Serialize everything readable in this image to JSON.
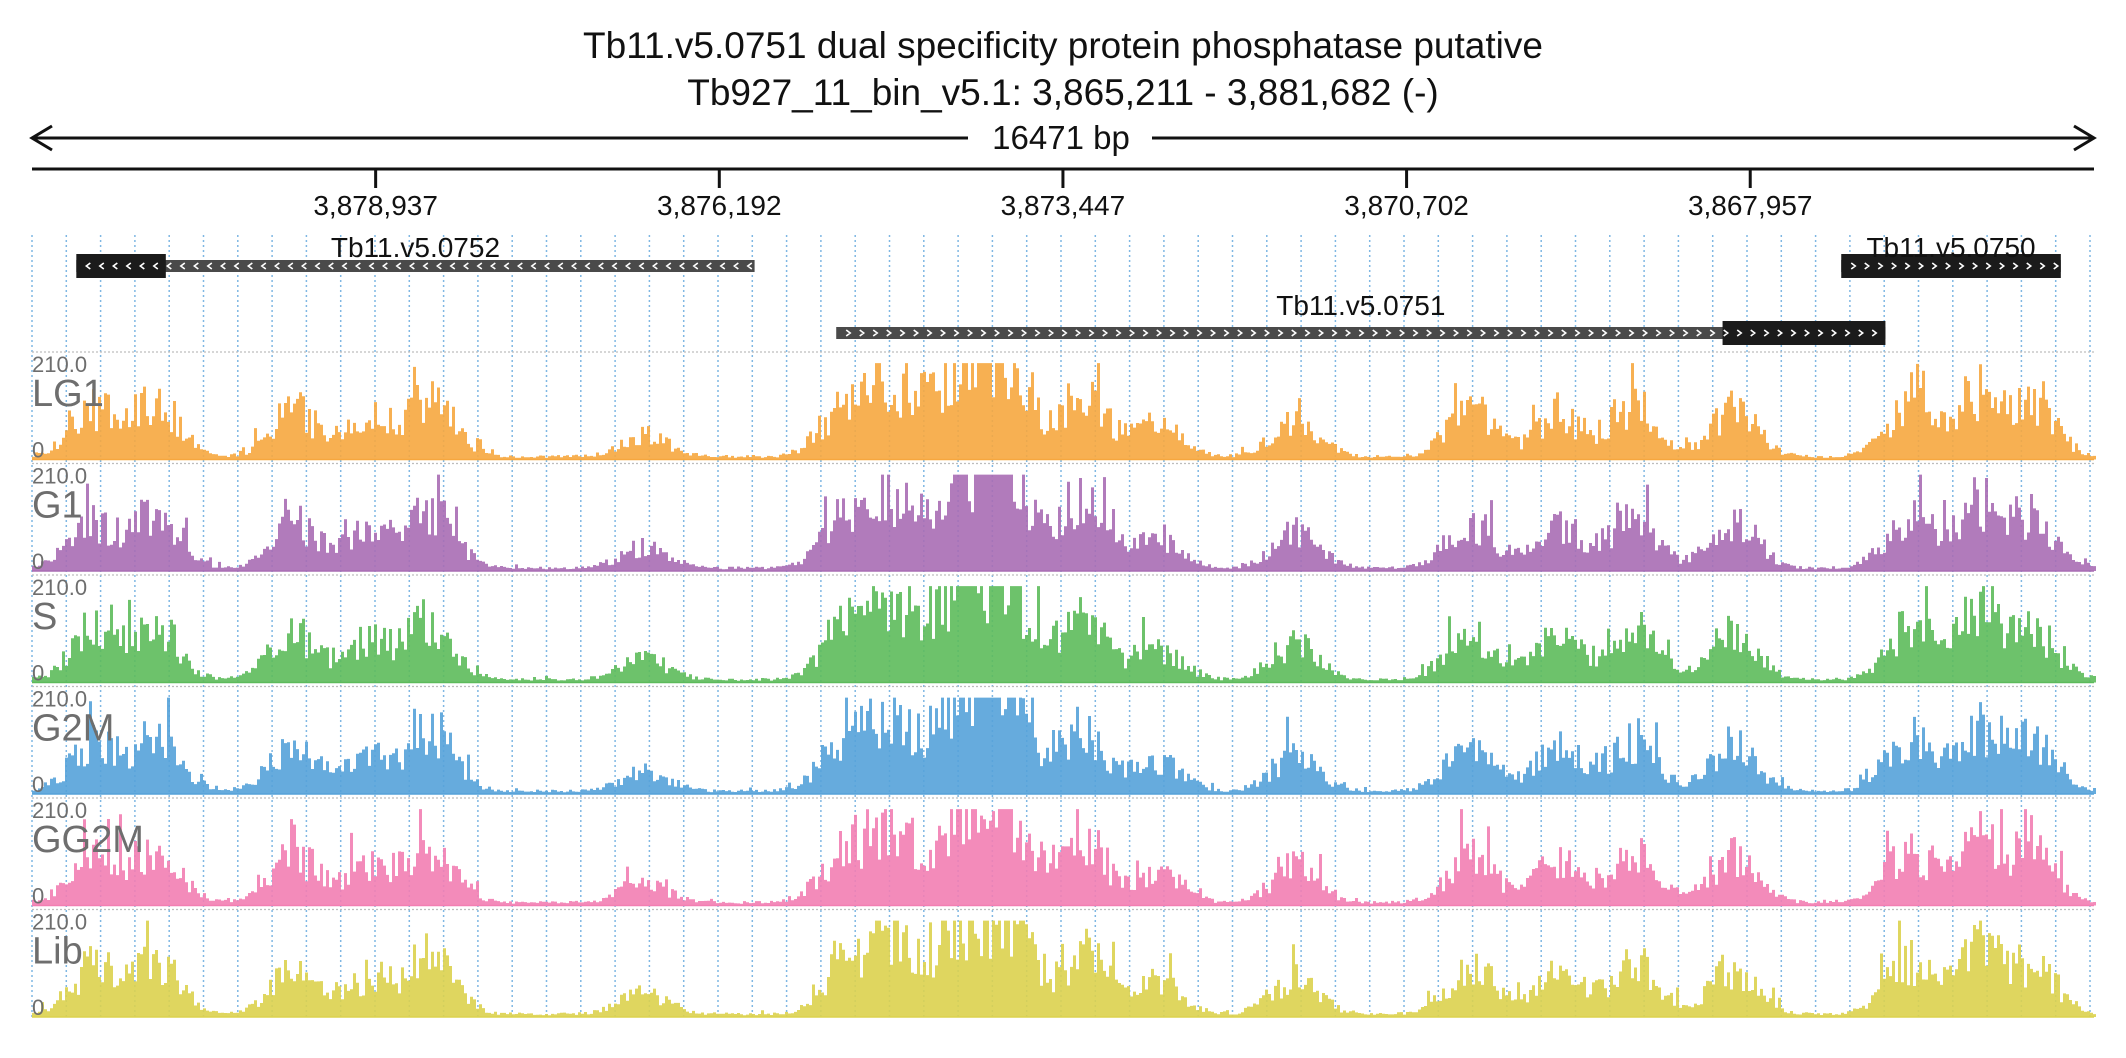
{
  "header": {
    "title": "Tb11.v5.0751  dual specificity protein phosphatase  putative",
    "subtitle": "Tb927_11_bin_v5.1: 3,865,211 - 3,881,682 (-)"
  },
  "span": {
    "label": "16471 bp"
  },
  "axis": {
    "region_start": 3865211,
    "region_end": 3881682,
    "strand": "-",
    "ticks": [
      {
        "pos": 3878937,
        "label": "3,878,937"
      },
      {
        "pos": 3876192,
        "label": "3,876,192"
      },
      {
        "pos": 3873447,
        "label": "3,873,447"
      },
      {
        "pos": 3870702,
        "label": "3,870,702"
      },
      {
        "pos": 3867957,
        "label": "3,867,957"
      }
    ]
  },
  "genes": [
    {
      "id": "Tb11.v5.0752",
      "label": "Tb11.v5.0752",
      "direction": "<",
      "start": 3875910,
      "end": 3881328,
      "cds_start": 3880613,
      "cds_end": 3881328
    },
    {
      "id": "Tb11.v5.0751",
      "label": "Tb11.v5.0751",
      "direction": ">",
      "start": 3866877,
      "end": 3875258,
      "cds_start": 3866877,
      "cds_end": 3868178
    },
    {
      "id": "Tb11.v5.0750",
      "label": "Tb11.v5.0750",
      "direction": ">",
      "start": 3865476,
      "end": 3867230,
      "cds_start": 3865476,
      "cds_end": 3867230
    }
  ],
  "tracks": [
    {
      "name": "LG1",
      "max_label": "210.0",
      "min_label": "0",
      "color": "#f6a73f"
    },
    {
      "name": "G1",
      "max_label": "210.0",
      "min_label": "0",
      "color": "#a86db4"
    },
    {
      "name": "S",
      "max_label": "210.0",
      "min_label": "0",
      "color": "#5dbb5b"
    },
    {
      "name": "G2M",
      "max_label": "210.0",
      "min_label": "0",
      "color": "#55a2d9"
    },
    {
      "name": "GG2M",
      "max_label": "210.0",
      "min_label": "0",
      "color": "#f27eb2"
    },
    {
      "name": "Lib",
      "max_label": "210.0",
      "min_label": "0",
      "color": "#dcd24e"
    }
  ],
  "gridline_color": "#7fb7e3",
  "gene_fill": "#1b1b1b",
  "utr_fill": "#4a4a4a"
}
